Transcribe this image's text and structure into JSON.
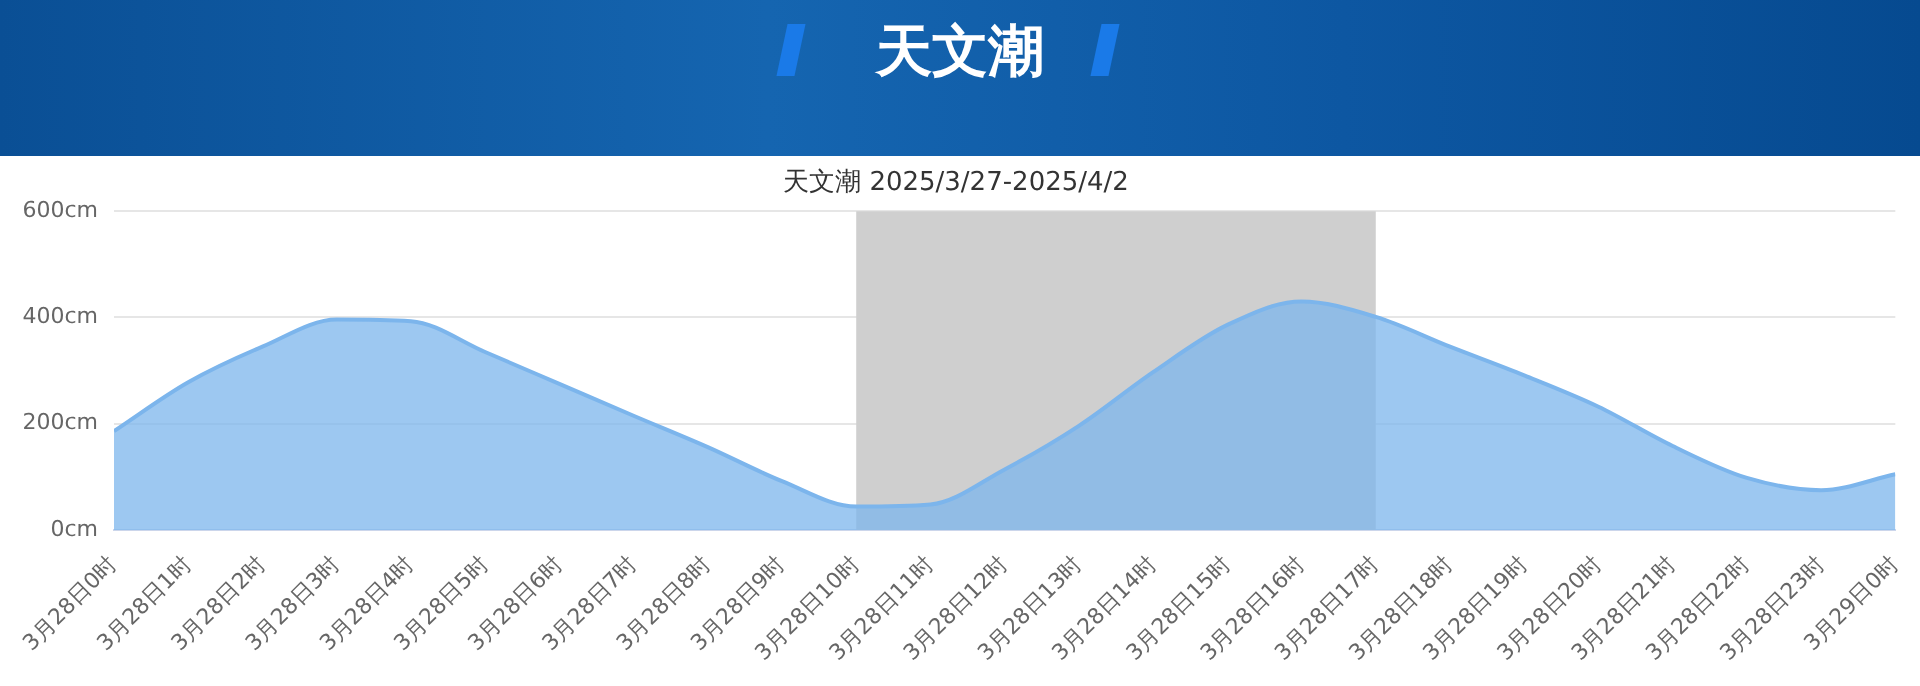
{
  "chart_data": {
    "type": "area",
    "title": "天文潮",
    "subtitle": "天文潮 2025/3/27-2025/4/2",
    "categories": [
      "3月28日0时",
      "3月28日1时",
      "3月28日2时",
      "3月28日3时",
      "3月28日4时",
      "3月28日5时",
      "3月28日6时",
      "3月28日7时",
      "3月28日8时",
      "3月28日9时",
      "3月28日10时",
      "3月28日11时",
      "3月28日12时",
      "3月28日13时",
      "3月28日14时",
      "3月28日15时",
      "3月28日16时",
      "3月28日17时",
      "3月28日18时",
      "3月28日19时",
      "3月28日20时",
      "3月28日21时",
      "3月28日22时",
      "3月28日23时",
      "3月29日0时"
    ],
    "series": [
      {
        "color": "#7cb5ec",
        "values": [
          186,
          278,
          345,
          396,
          393,
          335,
          275,
          215,
          156,
          92,
          44,
          48,
          114,
          196,
          297,
          386,
          430,
          401,
          345,
          291,
          232,
          158,
          98,
          75,
          105
        ]
      }
    ],
    "ylim": [
      0,
      600
    ],
    "yticks": [
      {
        "value": 0,
        "label": "0cm"
      },
      {
        "value": 200,
        "label": "200cm"
      },
      {
        "value": 400,
        "label": "400cm"
      },
      {
        "value": 600,
        "label": "600cm"
      }
    ],
    "bands": [
      {
        "axis": "x",
        "from": "3月28日10时",
        "to": "3月28日17时",
        "color": "#cfcfcf"
      }
    ],
    "grid": "y",
    "legend": false,
    "marker": "none",
    "line_style": "solid"
  }
}
